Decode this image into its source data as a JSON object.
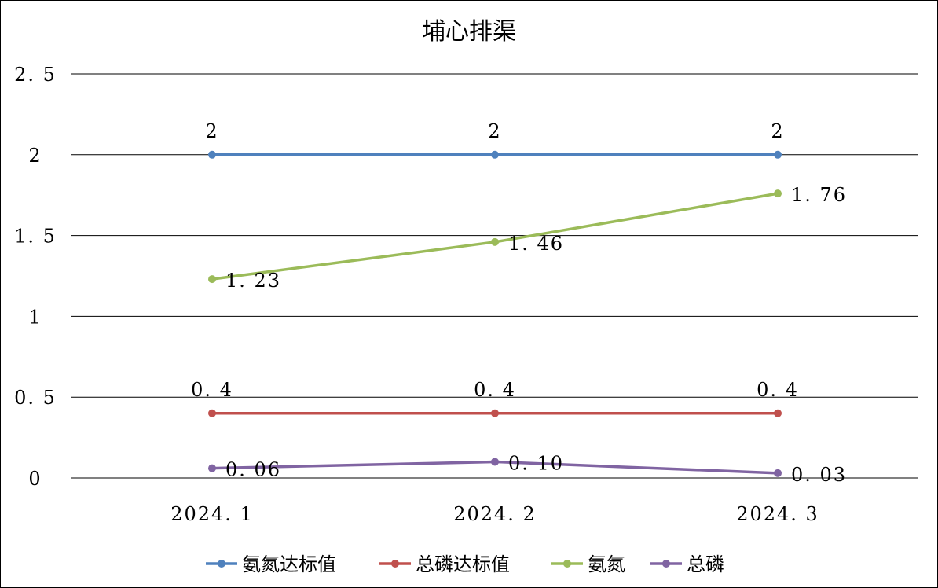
{
  "chart_data": {
    "type": "line",
    "title": "埔心排渠",
    "categories": [
      "2024.1",
      "2024.2",
      "2024.3"
    ],
    "category_labels": [
      "2024. 1",
      "2024. 2",
      "2024. 3"
    ],
    "ylim": [
      0,
      2.5
    ],
    "yticks": [
      0,
      0.5,
      1,
      1.5,
      2,
      2.5
    ],
    "ytick_labels": [
      "0",
      "0. 5",
      "1",
      "1. 5",
      "2",
      "2. 5"
    ],
    "grid": true,
    "legend_position": "bottom",
    "series": [
      {
        "name": "氨氮达标值",
        "color": "#4f81bd",
        "values": [
          2,
          2,
          2
        ],
        "labels": [
          "2",
          "2",
          "2"
        ],
        "label_pos": "above"
      },
      {
        "name": "总磷达标值",
        "color": "#c0504d",
        "values": [
          0.4,
          0.4,
          0.4
        ],
        "labels": [
          "0. 4",
          "0. 4",
          "0. 4"
        ],
        "label_pos": "above"
      },
      {
        "name": "氨氮",
        "color": "#9bbb59",
        "values": [
          1.23,
          1.46,
          1.76
        ],
        "labels": [
          "1. 23",
          "1. 46",
          "1. 76"
        ],
        "label_pos": "right"
      },
      {
        "name": "总磷",
        "color": "#8064a2",
        "values": [
          0.06,
          0.1,
          0.03
        ],
        "labels": [
          "0. 06",
          "0. 10",
          "0. 03"
        ],
        "label_pos": "right"
      }
    ]
  }
}
